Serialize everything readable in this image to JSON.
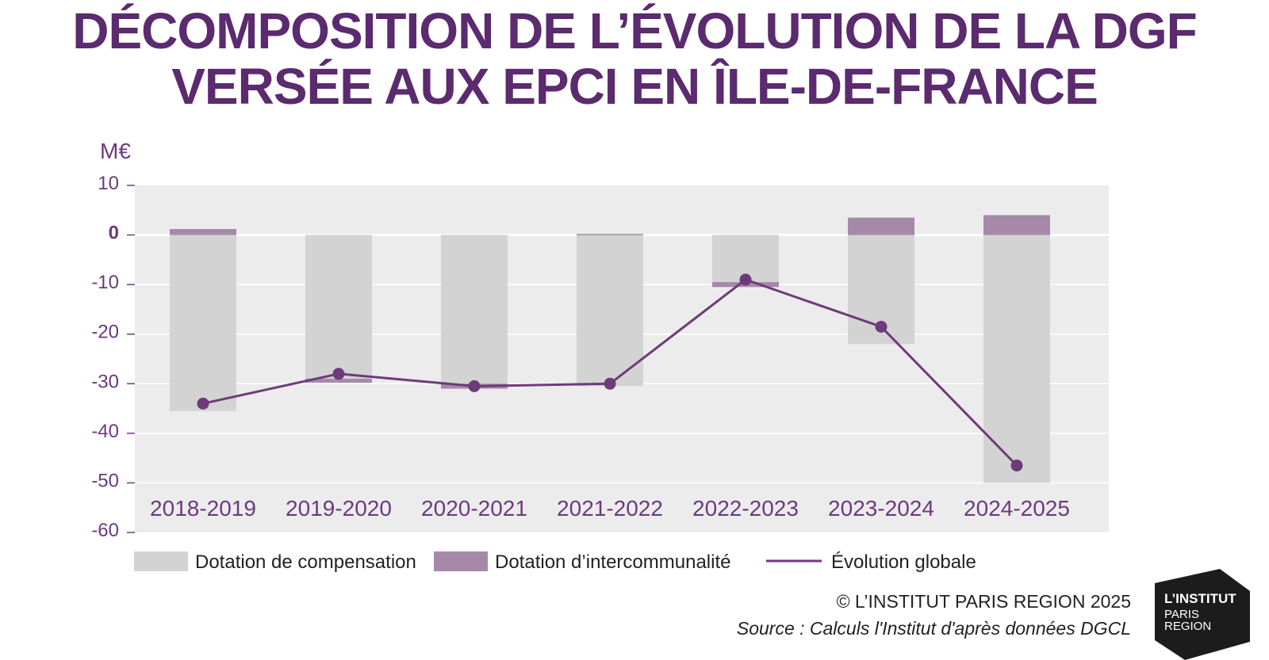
{
  "title": {
    "line1": "DÉCOMPOSITION DE L’ÉVOLUTION DE LA DGF",
    "line2": "VERSÉE AUX EPCI EN ÎLE-DE-FRANCE"
  },
  "colors": {
    "title": "#5b2a6f",
    "axis_text": "#6b3a7d",
    "plot_bg": "#ececec",
    "compensation": "#d3d3d3",
    "intercommunalite": "#a689a9",
    "line": "#6e3b7a",
    "gridline": "#ffffff"
  },
  "chart_data": {
    "type": "bar",
    "unit_label": "M€",
    "categories": [
      "2018-2019",
      "2019-2020",
      "2020-2021",
      "2021-2022",
      "2022-2023",
      "2023-2024",
      "2024-2025"
    ],
    "yticks": [
      10,
      0,
      -10,
      -20,
      -30,
      -40,
      -50,
      -60
    ],
    "ylim": [
      -60,
      10
    ],
    "grid": true,
    "legend_position": "bottom",
    "series": [
      {
        "name": "Dotation de compensation",
        "type": "bar",
        "values": [
          -35.5,
          -29,
          -30,
          -30.5,
          -9.5,
          -22,
          -50
        ]
      },
      {
        "name": "Dotation d’intercommunalité",
        "type": "bar",
        "values": [
          1.2,
          -0.8,
          -1,
          0.2,
          -1,
          3.5,
          4
        ]
      },
      {
        "name": "Évolution globale",
        "type": "line",
        "values": [
          -34,
          -28,
          -30.5,
          -30,
          -9,
          -18.5,
          -46.5
        ]
      }
    ]
  },
  "footer": {
    "credit": "© L’INSTITUT PARIS REGION 2025",
    "source": "Source : Calculs l'Institut d'après données DGCL"
  },
  "logo": {
    "line1": "L’INSTITUT",
    "line2": "PARIS",
    "line3": "REGION"
  }
}
